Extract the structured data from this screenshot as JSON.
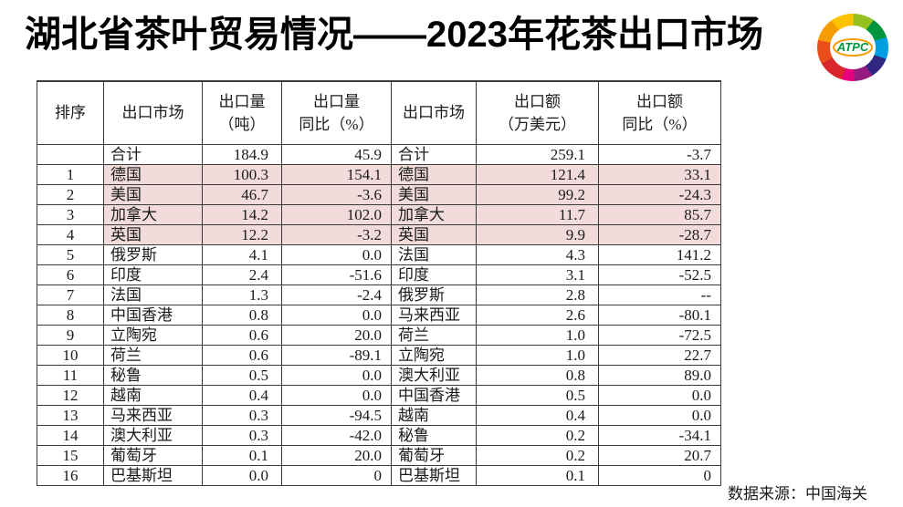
{
  "title": "湖北省茶叶贸易情况——2023年花茶出口市场",
  "logo": {
    "text": "ATPC",
    "text_color": "#009640",
    "ring_colors": [
      "#d8262c",
      "#e94e1b",
      "#f59c00",
      "#fdc300",
      "#95c11f",
      "#00963f",
      "#009fe3",
      "#312783",
      "#951b81",
      "#e6007e"
    ]
  },
  "source_note": "数据来源：中国海关",
  "table": {
    "columns": [
      {
        "label": "排序"
      },
      {
        "label": "出口市场"
      },
      {
        "label": "出口量\n（吨）"
      },
      {
        "label": "出口量\n同比（%）"
      },
      {
        "label": "出口市场"
      },
      {
        "label": "出口额\n（万美元）"
      },
      {
        "label": "出口额\n同比（%）"
      }
    ],
    "highlight_color": "#f2dcdb",
    "highlighted_rows": [
      1,
      2,
      3,
      4
    ],
    "rows": [
      [
        "",
        "合计",
        "184.9",
        "45.9",
        "合计",
        "259.1",
        "-3.7"
      ],
      [
        "1",
        "德国",
        "100.3",
        "154.1",
        "德国",
        "121.4",
        "33.1"
      ],
      [
        "2",
        "美国",
        "46.7",
        "-3.6",
        "美国",
        "99.2",
        "-24.3"
      ],
      [
        "3",
        "加拿大",
        "14.2",
        "102.0",
        "加拿大",
        "11.7",
        "85.7"
      ],
      [
        "4",
        "英国",
        "12.2",
        "-3.2",
        "英国",
        "9.9",
        "-28.7"
      ],
      [
        "5",
        "俄罗斯",
        "4.1",
        "0.0",
        "法国",
        "4.3",
        "141.2"
      ],
      [
        "6",
        "印度",
        "2.4",
        "-51.6",
        "印度",
        "3.1",
        "-52.5"
      ],
      [
        "7",
        "法国",
        "1.3",
        "-2.4",
        "俄罗斯",
        "2.8",
        "--"
      ],
      [
        "8",
        "中国香港",
        "0.8",
        "0.0",
        "马来西亚",
        "2.6",
        "-80.1"
      ],
      [
        "9",
        "立陶宛",
        "0.6",
        "20.0",
        "荷兰",
        "1.0",
        "-72.5"
      ],
      [
        "10",
        "荷兰",
        "0.6",
        "-89.1",
        "立陶宛",
        "1.0",
        "22.7"
      ],
      [
        "11",
        "秘鲁",
        "0.5",
        "0.0",
        "澳大利亚",
        "0.8",
        "89.0"
      ],
      [
        "12",
        "越南",
        "0.4",
        "0.0",
        "中国香港",
        "0.5",
        "0.0"
      ],
      [
        "13",
        "马来西亚",
        "0.3",
        "-94.5",
        "越南",
        "0.4",
        "0.0"
      ],
      [
        "14",
        "澳大利亚",
        "0.3",
        "-42.0",
        "秘鲁",
        "0.2",
        "-34.1"
      ],
      [
        "15",
        "葡萄牙",
        "0.1",
        "20.0",
        "葡萄牙",
        "0.2",
        "20.7"
      ],
      [
        "16",
        "巴基斯坦",
        "0.0",
        "0",
        "巴基斯坦",
        "0.1",
        "0"
      ]
    ]
  }
}
